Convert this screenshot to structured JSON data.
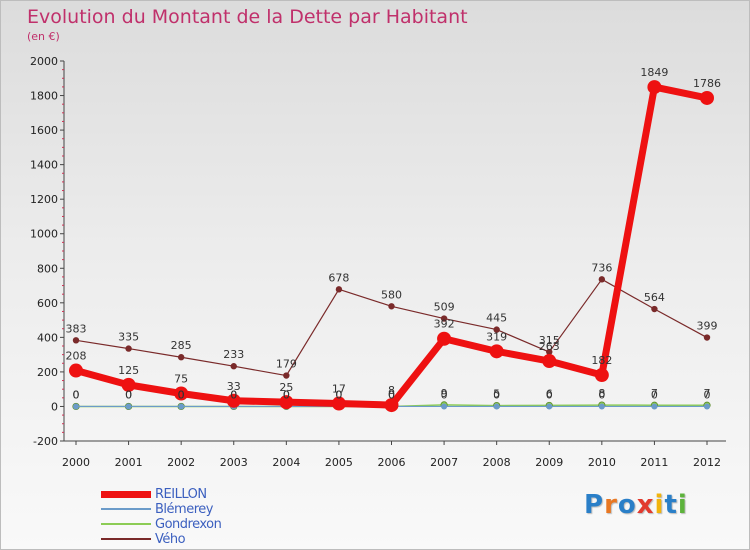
{
  "title": "Evolution du Montant de la Dette par Habitant",
  "subtitle": "(en €)",
  "logo": {
    "text": "Proxiti",
    "letters": [
      "P",
      "r",
      "o",
      "x",
      "i",
      "t",
      "i"
    ],
    "colors": [
      "#2a7fc8",
      "#e87722",
      "#2a7fc8",
      "#e23a2e",
      "#f1b40d",
      "#2a7fc8",
      "#5db33c"
    ]
  },
  "chart_data": {
    "type": "line",
    "title": "Evolution du Montant de la Dette par Habitant",
    "subtitle": "(en €)",
    "xlabel": "",
    "ylabel": "",
    "x": [
      "2000",
      "2001",
      "2002",
      "2003",
      "2004",
      "2005",
      "2006",
      "2007",
      "2008",
      "2009",
      "2010",
      "2011",
      "2012"
    ],
    "ylim": [
      -200,
      2000
    ],
    "yticks": [
      -200,
      0,
      200,
      400,
      600,
      800,
      1000,
      1200,
      1400,
      1600,
      1800,
      2000
    ],
    "grid": false,
    "legend_position": "bottom-left",
    "series": [
      {
        "name": "REILLON",
        "color": "#ee1111",
        "values": [
          208,
          125,
          75,
          33,
          25,
          17,
          8,
          392,
          319,
          263,
          182,
          1849,
          1786
        ]
      },
      {
        "name": "Blémerey",
        "color": "#6b9bc9",
        "values": [
          0,
          0,
          0,
          0,
          0,
          0,
          0,
          0,
          0,
          0,
          0,
          0,
          0
        ]
      },
      {
        "name": "Gondrexon",
        "color": "#8ccc55",
        "values": [
          0,
          0,
          0,
          0,
          0,
          0,
          0,
          9,
          5,
          6,
          8,
          7,
          7
        ]
      },
      {
        "name": "Vého",
        "color": "#7a2a2a",
        "values": [
          383,
          335,
          285,
          233,
          179,
          678,
          580,
          509,
          445,
          315,
          736,
          564,
          399
        ]
      }
    ]
  }
}
